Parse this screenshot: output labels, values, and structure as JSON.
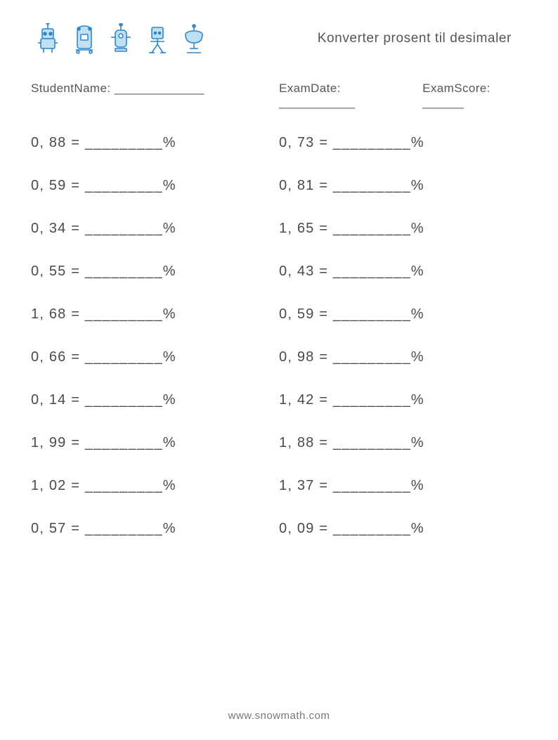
{
  "header": {
    "title": "Konverter prosent til desimaler",
    "icon_stroke": "#2e87c8",
    "icon_fill": "#bfe0f3"
  },
  "meta": {
    "student_label": "StudentName: _____________",
    "date_label": "ExamDate: ___________",
    "score_label": "ExamScore: ______"
  },
  "blank": "_________",
  "column1": [
    "0, 88",
    "0, 59",
    "0, 34",
    "0, 55",
    "1, 68",
    "0, 66",
    "0, 14",
    "1, 99",
    "1, 02",
    "0, 57"
  ],
  "column2": [
    "0, 73",
    "0, 81",
    "1, 65",
    "0, 43",
    "0, 59",
    "0, 98",
    "1, 42",
    "1, 88",
    "1, 37",
    "0, 09"
  ],
  "footer": "www.snowmath.com"
}
